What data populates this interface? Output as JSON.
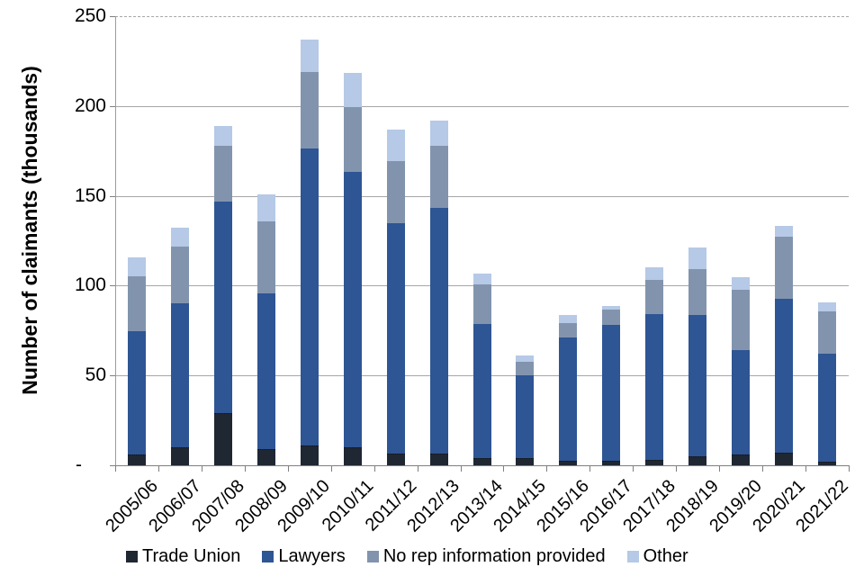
{
  "chart_data": {
    "type": "bar",
    "stacked": true,
    "title": "",
    "ylabel": "Number of claimants (thousands)",
    "xlabel": "",
    "ylim": [
      0,
      250
    ],
    "grid": true,
    "legend_position": "bottom",
    "yticks": [
      {
        "v": 250,
        "label": "250"
      },
      {
        "v": 200,
        "label": "200"
      },
      {
        "v": 150,
        "label": "150"
      },
      {
        "v": 100,
        "label": "100"
      },
      {
        "v": 50,
        "label": "50"
      },
      {
        "v": 0,
        "label": "-"
      }
    ],
    "categories": [
      "2005/06",
      "2006/07",
      "2007/08",
      "2008/09",
      "2009/10",
      "2010/11",
      "2011/12",
      "2012/13",
      "2013/14",
      "2014/15",
      "2015/16",
      "2016/17",
      "2017/18",
      "2018/19",
      "2019/20",
      "2020/21",
      "2021/22"
    ],
    "series": [
      {
        "name": "Trade Union",
        "color": "#1f2733",
        "values": [
          6,
          10,
          29,
          9,
          11,
          10,
          6.5,
          6.5,
          4,
          4,
          2.5,
          2.5,
          3,
          5,
          6,
          7,
          2
        ]
      },
      {
        "name": "Lawyers",
        "color": "#2e5594",
        "values": [
          68.5,
          80,
          118,
          86.5,
          165.5,
          153.5,
          128.5,
          137,
          74.5,
          46,
          68.5,
          75.5,
          81,
          78.5,
          58,
          85.5,
          60
        ]
      },
      {
        "name": "No rep information provided",
        "color": "#8294ad",
        "values": [
          30.5,
          31.5,
          31,
          40.5,
          42.5,
          36,
          34.5,
          34.5,
          22,
          7.5,
          8,
          8.5,
          19,
          25.5,
          33.5,
          35,
          23.5
        ]
      },
      {
        "name": "Other",
        "color": "#b6c9e6",
        "values": [
          10.5,
          11,
          11,
          15,
          18,
          19,
          17.5,
          14,
          6,
          3.5,
          4.5,
          2,
          7,
          12,
          7,
          6,
          5
        ]
      }
    ],
    "totals": [
      115.5,
      132.5,
      189,
      151,
      237,
      218.5,
      187,
      192,
      106.5,
      61,
      83.5,
      88.5,
      110,
      121,
      104.5,
      133.5,
      90.5
    ]
  }
}
